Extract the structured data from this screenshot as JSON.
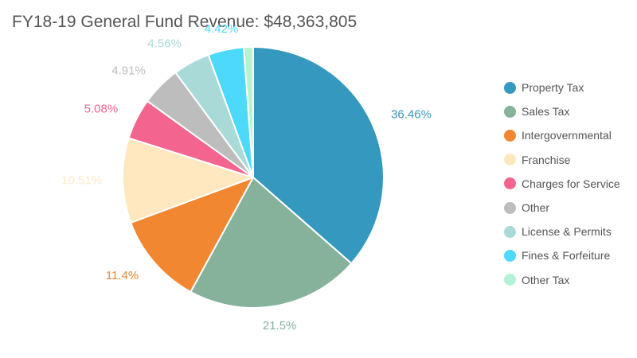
{
  "chart_data": {
    "type": "pie",
    "title": "FY18-19 General Fund Revenue: $48,363,805",
    "legend_position": "right",
    "slices": [
      {
        "name": "Property Tax",
        "value": 36.46,
        "label": "36.46%",
        "color": "#3498bf"
      },
      {
        "name": "Sales Tax",
        "value": 21.5,
        "label": "21.5%",
        "color": "#86b29c"
      },
      {
        "name": "Intergovernmental",
        "value": 11.4,
        "label": "11.4%",
        "color": "#f28731"
      },
      {
        "name": "Franchise",
        "value": 10.51,
        "label": "10.51%",
        "color": "#ffe8c0"
      },
      {
        "name": "Charges for Service",
        "value": 5.08,
        "label": "5.08%",
        "color": "#f3658f"
      },
      {
        "name": "Other",
        "value": 4.91,
        "label": "4.91%",
        "color": "#bdbdbd"
      },
      {
        "name": "License & Permits",
        "value": 4.56,
        "label": "4.56%",
        "color": "#a9dad8"
      },
      {
        "name": "Fines & Forfeiture",
        "value": 4.42,
        "label": "4.42%",
        "color": "#4dd9fa"
      },
      {
        "name": "Other Tax",
        "value": 1.16,
        "label": "",
        "color": "#b4f2d7"
      }
    ]
  }
}
